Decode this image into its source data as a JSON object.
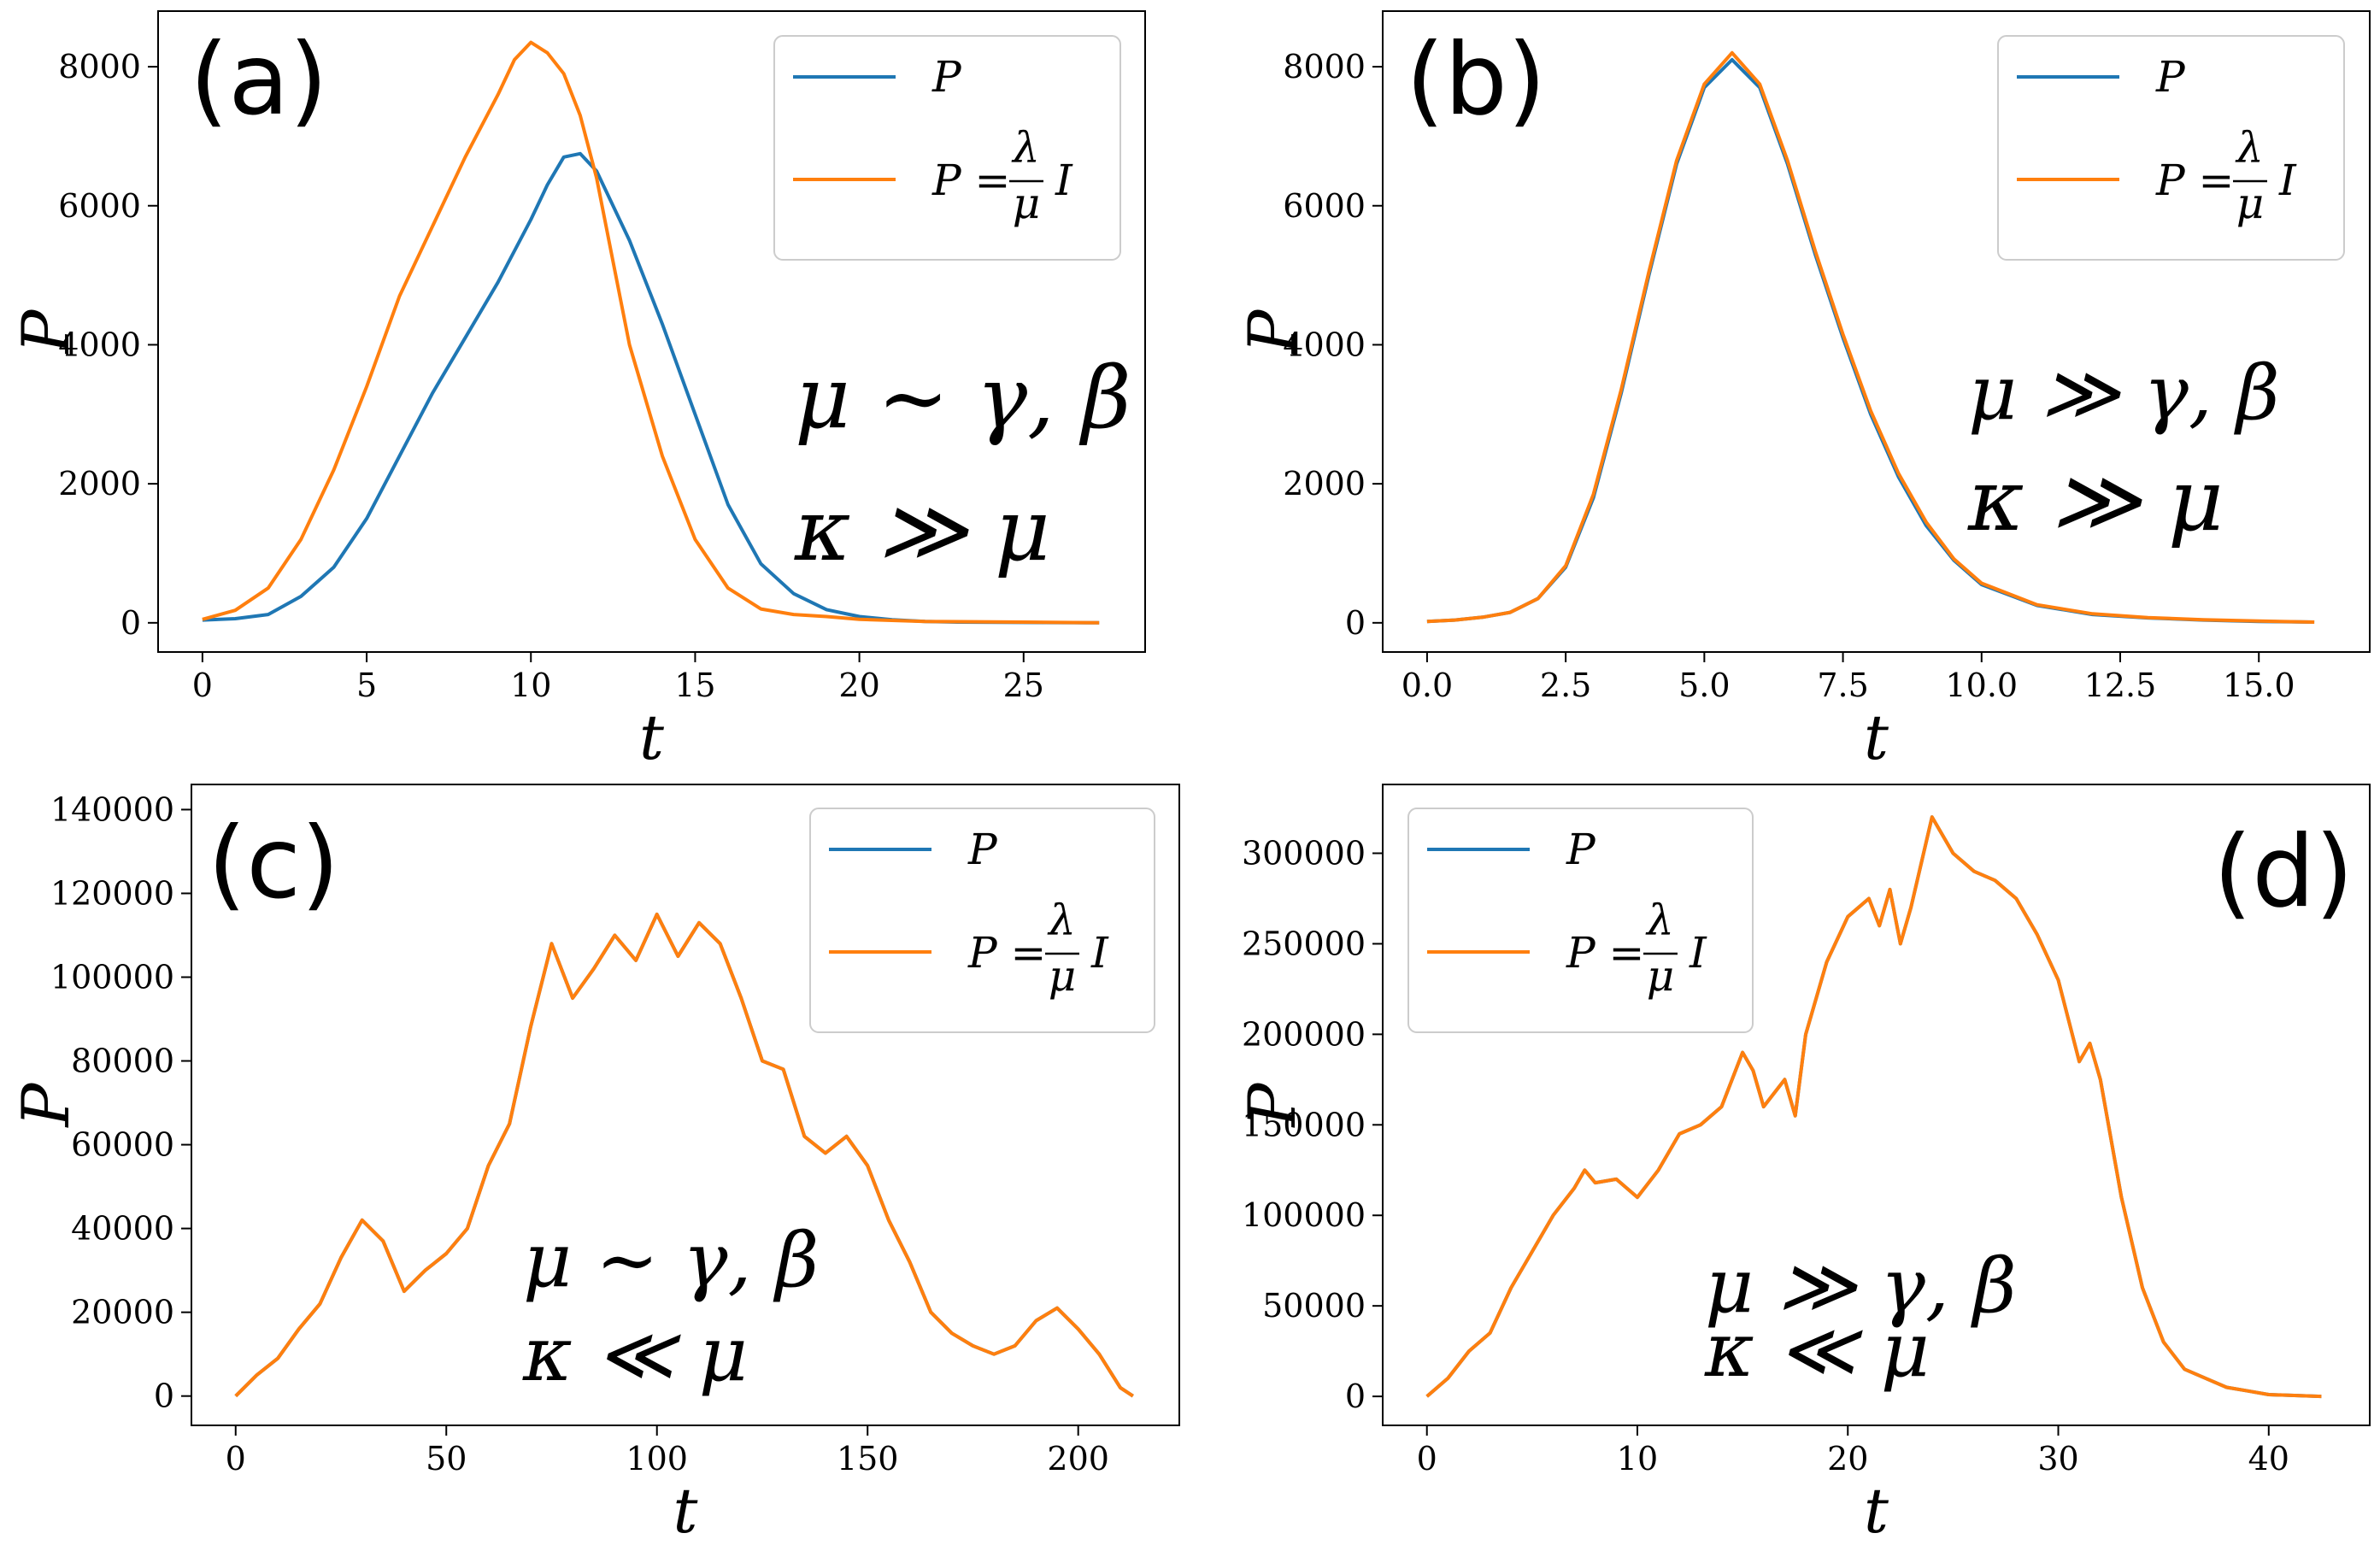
{
  "colors": {
    "P": "#1f77b4",
    "P_approx": "#ff7f0e"
  },
  "chart_data": [
    {
      "type": "line",
      "panel": "(a)",
      "xlabel": "t",
      "ylabel": "P",
      "xlim": [
        -1.35,
        28.7
      ],
      "ylim": [
        -420,
        8800
      ],
      "xticks": [
        0,
        5,
        10,
        15,
        20,
        25
      ],
      "yticks": [
        0,
        2000,
        4000,
        6000,
        8000
      ],
      "legend": "top-right",
      "annotation": [
        "μ ∼ γ, β",
        "κ ≫ μ"
      ],
      "series": [
        {
          "name": "P",
          "x": [
            0,
            1,
            2,
            3,
            4,
            5,
            6,
            7,
            8,
            9,
            10,
            10.5,
            11,
            11.5,
            12,
            13,
            14,
            15,
            16,
            17,
            18,
            19,
            20,
            21,
            22,
            23,
            25,
            27.3
          ],
          "y": [
            40,
            60,
            120,
            380,
            800,
            1500,
            2400,
            3300,
            4100,
            4900,
            5800,
            6300,
            6700,
            6750,
            6500,
            5500,
            4300,
            3000,
            1700,
            850,
            420,
            190,
            90,
            45,
            20,
            10,
            5,
            0
          ]
        },
        {
          "name": "P = (λ/μ) I",
          "x": [
            0,
            1,
            2,
            3,
            4,
            5,
            6,
            7,
            8,
            9,
            9.5,
            10,
            10.5,
            11,
            11.5,
            12,
            12.5,
            13,
            14,
            15,
            16,
            17,
            18,
            19,
            20,
            22,
            25,
            27.3
          ],
          "y": [
            50,
            180,
            500,
            1200,
            2200,
            3400,
            4700,
            5700,
            6700,
            7600,
            8100,
            8350,
            8200,
            7900,
            7300,
            6400,
            5200,
            4000,
            2400,
            1200,
            500,
            200,
            120,
            90,
            50,
            20,
            10,
            0
          ]
        }
      ]
    },
    {
      "type": "line",
      "panel": "(b)",
      "xlabel": "t",
      "ylabel": "P",
      "xlim": [
        -0.8,
        17.0
      ],
      "ylim": [
        -420,
        8800
      ],
      "xticks": [
        0.0,
        2.5,
        5.0,
        7.5,
        10.0,
        12.5,
        15.0
      ],
      "yticks": [
        0,
        2000,
        4000,
        6000,
        8000
      ],
      "legend": "top-right",
      "annotation": [
        "μ ≫ γ, β",
        "κ ≫ μ"
      ],
      "series": [
        {
          "name": "P",
          "x": [
            0,
            0.5,
            1,
            1.5,
            2,
            2.5,
            3,
            3.5,
            4,
            4.5,
            5,
            5.5,
            6,
            6.5,
            7,
            7.5,
            8,
            8.5,
            9,
            9.5,
            10,
            11,
            12,
            13,
            14,
            15,
            16
          ],
          "y": [
            20,
            40,
            80,
            150,
            350,
            800,
            1800,
            3300,
            5000,
            6600,
            7700,
            8100,
            7700,
            6600,
            5300,
            4100,
            3000,
            2100,
            1400,
            900,
            550,
            250,
            120,
            70,
            40,
            20,
            10
          ]
        },
        {
          "name": "P = (λ/μ) I",
          "x": [
            0,
            0.5,
            1,
            1.5,
            2,
            2.5,
            3,
            3.5,
            4,
            4.5,
            5,
            5.5,
            6,
            6.5,
            7,
            7.5,
            8,
            8.5,
            9,
            9.5,
            10,
            11,
            12,
            13,
            14,
            15,
            16
          ],
          "y": [
            20,
            40,
            80,
            150,
            350,
            820,
            1850,
            3350,
            5050,
            6650,
            7750,
            8200,
            7750,
            6650,
            5350,
            4150,
            3050,
            2150,
            1450,
            920,
            570,
            260,
            130,
            75,
            45,
            25,
            10
          ]
        }
      ]
    },
    {
      "type": "line",
      "panel": "(c)",
      "xlabel": "t",
      "ylabel": "P",
      "xlim": [
        -10.5,
        224
      ],
      "ylim": [
        -7000,
        146000
      ],
      "xticks": [
        0,
        50,
        100,
        150,
        200
      ],
      "yticks": [
        0,
        20000,
        40000,
        60000,
        80000,
        100000,
        120000,
        140000
      ],
      "legend": "top-right",
      "annotation": [
        "μ ∼ γ, β",
        "κ ≪ μ"
      ],
      "series": [
        {
          "name": "P",
          "x": [
            0,
            5,
            10,
            15,
            20,
            25,
            30,
            35,
            40,
            45,
            50,
            55,
            60,
            65,
            70,
            75,
            80,
            85,
            90,
            95,
            100,
            105,
            110,
            115,
            120,
            125,
            130,
            135,
            140,
            145,
            150,
            155,
            160,
            165,
            170,
            175,
            180,
            185,
            190,
            195,
            200,
            205,
            210,
            213
          ],
          "y": [
            0,
            5000,
            9000,
            16000,
            22000,
            33000,
            42000,
            37000,
            25000,
            30000,
            34000,
            40000,
            55000,
            65000,
            88000,
            108000,
            95000,
            102000,
            110000,
            104000,
            115000,
            105000,
            113000,
            108000,
            95000,
            80000,
            78000,
            62000,
            58000,
            62000,
            55000,
            42000,
            32000,
            20000,
            15000,
            12000,
            10000,
            12000,
            18000,
            21000,
            16000,
            10000,
            2000,
            0
          ]
        },
        {
          "name": "P = (λ/μ) I",
          "x": [
            0,
            5,
            10,
            15,
            20,
            25,
            30,
            35,
            40,
            45,
            50,
            55,
            60,
            65,
            70,
            75,
            80,
            85,
            90,
            95,
            100,
            105,
            110,
            115,
            120,
            125,
            130,
            135,
            140,
            145,
            150,
            155,
            160,
            165,
            170,
            175,
            180,
            185,
            190,
            195,
            200,
            205,
            210,
            213
          ],
          "y": [
            0,
            5000,
            9000,
            16000,
            22000,
            33000,
            42000,
            37000,
            25000,
            30000,
            34000,
            40000,
            55000,
            65000,
            88000,
            108000,
            95000,
            102000,
            110000,
            104000,
            115000,
            105000,
            113000,
            108000,
            95000,
            80000,
            78000,
            62000,
            58000,
            62000,
            55000,
            42000,
            32000,
            20000,
            15000,
            12000,
            10000,
            12000,
            18000,
            21000,
            16000,
            10000,
            2000,
            0
          ]
        }
      ]
    },
    {
      "type": "line",
      "panel": "(d)",
      "xlabel": "t",
      "ylabel": "P",
      "xlim": [
        -2.1,
        44.8
      ],
      "ylim": [
        -16000,
        338000
      ],
      "xticks": [
        0,
        10,
        20,
        30,
        40
      ],
      "yticks": [
        0,
        50000,
        100000,
        150000,
        200000,
        250000,
        300000
      ],
      "legend": "top-left",
      "annotation": [
        "μ ≫ γ, β",
        "κ ≪ μ"
      ],
      "series": [
        {
          "name": "P",
          "x": [
            0,
            1,
            2,
            3,
            4,
            5,
            6,
            7,
            7.5,
            8,
            9,
            10,
            11,
            12,
            13,
            14,
            15,
            15.5,
            16,
            17,
            17.5,
            18,
            19,
            20,
            21,
            21.5,
            22,
            22.5,
            23,
            24,
            25,
            26,
            27,
            28,
            29,
            30,
            31,
            31.5,
            32,
            33,
            34,
            35,
            36,
            37,
            38,
            39,
            40,
            42.5
          ],
          "y": [
            0,
            10000,
            25000,
            35000,
            60000,
            80000,
            100000,
            115000,
            125000,
            118000,
            120000,
            110000,
            125000,
            145000,
            150000,
            160000,
            190000,
            180000,
            160000,
            175000,
            155000,
            200000,
            240000,
            265000,
            275000,
            260000,
            280000,
            250000,
            270000,
            320000,
            300000,
            290000,
            285000,
            275000,
            255000,
            230000,
            185000,
            195000,
            175000,
            110000,
            60000,
            30000,
            15000,
            10000,
            5000,
            3000,
            1000,
            0
          ]
        },
        {
          "name": "P = (λ/μ) I",
          "x": [
            0,
            1,
            2,
            3,
            4,
            5,
            6,
            7,
            7.5,
            8,
            9,
            10,
            11,
            12,
            13,
            14,
            15,
            15.5,
            16,
            17,
            17.5,
            18,
            19,
            20,
            21,
            21.5,
            22,
            22.5,
            23,
            24,
            25,
            26,
            27,
            28,
            29,
            30,
            31,
            31.5,
            32,
            33,
            34,
            35,
            36,
            37,
            38,
            39,
            40,
            42.5
          ],
          "y": [
            0,
            10000,
            25000,
            35000,
            60000,
            80000,
            100000,
            115000,
            125000,
            118000,
            120000,
            110000,
            125000,
            145000,
            150000,
            160000,
            190000,
            180000,
            160000,
            175000,
            155000,
            200000,
            240000,
            265000,
            275000,
            260000,
            280000,
            250000,
            270000,
            320000,
            300000,
            290000,
            285000,
            275000,
            255000,
            230000,
            185000,
            195000,
            175000,
            110000,
            60000,
            30000,
            15000,
            10000,
            5000,
            3000,
            1000,
            0
          ]
        }
      ]
    }
  ]
}
